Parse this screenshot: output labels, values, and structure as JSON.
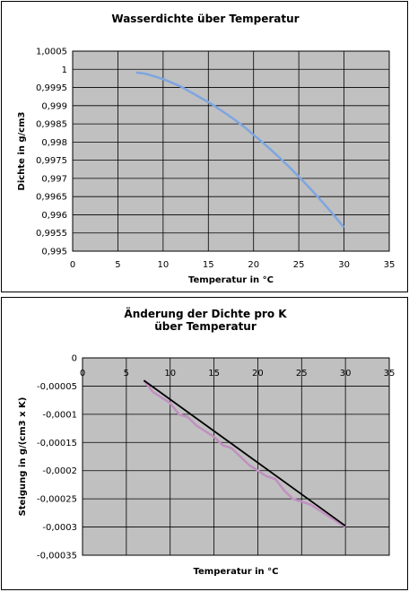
{
  "chart_data": [
    {
      "type": "line",
      "title": "Wasserdichte über Temperatur",
      "xlabel": "Temperatur in °C",
      "ylabel": "Dichte in g/cm3",
      "xlim": [
        0,
        35
      ],
      "ylim": [
        0.995,
        1.0005
      ],
      "x_ticks": [
        "0",
        "5",
        "10",
        "15",
        "20",
        "25",
        "30",
        "35"
      ],
      "y_ticks": [
        "1,0005",
        "1",
        "0,9995",
        "0,999",
        "0,9985",
        "0,998",
        "0,9975",
        "0,997",
        "0,9965",
        "0,996",
        "0,9955",
        "0,995"
      ],
      "grid": true,
      "legend": "none",
      "series": [
        {
          "color": "#7ea6e0",
          "x": [
            7,
            8,
            9,
            10,
            11,
            12,
            13,
            14,
            15,
            16,
            17,
            18,
            19,
            20,
            21,
            22,
            23,
            24,
            25,
            26,
            27,
            28,
            29,
            30
          ],
          "y": [
            0.99991,
            0.99988,
            0.99981,
            0.99973,
            0.99963,
            0.99952,
            0.99938,
            0.99924,
            0.9991,
            0.99894,
            0.99877,
            0.9986,
            0.99841,
            0.9982,
            0.99799,
            0.99777,
            0.99754,
            0.9973,
            0.99705,
            0.99679,
            0.99652,
            0.99624,
            0.99595,
            0.99565
          ]
        }
      ]
    },
    {
      "type": "line",
      "title": "Änderung der Dichte pro K\nüber Temperatur",
      "xlabel": "Temperatur in °C",
      "ylabel": "Steigung in g/(cm3 x K)",
      "xlim": [
        0,
        35
      ],
      "ylim": [
        -0.00035,
        0
      ],
      "x_ticks": [
        "0",
        "5",
        "10",
        "15",
        "20",
        "25",
        "30",
        "35"
      ],
      "y_ticks": [
        "0",
        "-0,00005",
        "-0,0001",
        "-0,00015",
        "-0,0002",
        "-0,00025",
        "-0,0003",
        "-0,00035"
      ],
      "grid": true,
      "legend": "none",
      "series": [
        {
          "color": "#c090c0",
          "x": [
            7,
            8,
            9,
            10,
            11,
            12,
            13,
            14,
            15,
            16,
            17,
            18,
            19,
            20,
            21,
            22,
            23,
            24,
            25,
            26,
            27,
            28,
            29,
            30
          ],
          "y": [
            -4e-05,
            -6e-05,
            -7e-05,
            -8e-05,
            -0.0001,
            -0.000105,
            -0.00012,
            -0.00013,
            -0.00014,
            -0.000155,
            -0.00016,
            -0.000175,
            -0.00019,
            -0.0002,
            -0.00021,
            -0.000215,
            -0.000235,
            -0.00025,
            -0.000255,
            -0.00026,
            -0.00027,
            -0.00028,
            -0.00029,
            -0.0003
          ]
        },
        {
          "color": "#000000",
          "x": [
            7,
            30
          ],
          "y": [
            -4e-05,
            -0.000298
          ]
        }
      ]
    }
  ]
}
